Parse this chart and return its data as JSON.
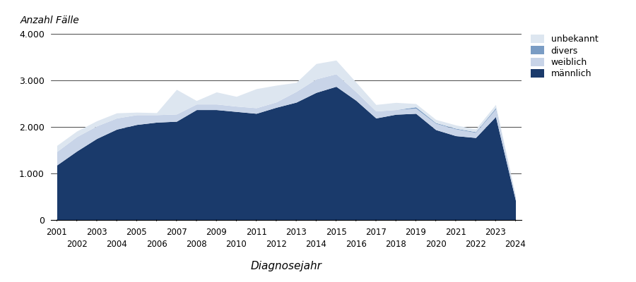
{
  "years": [
    2001,
    2002,
    2003,
    2004,
    2005,
    2006,
    2007,
    2008,
    2009,
    2010,
    2011,
    2012,
    2013,
    2014,
    2015,
    2016,
    2017,
    2018,
    2019,
    2020,
    2021,
    2022,
    2023,
    2024
  ],
  "maennlich": [
    1180,
    1480,
    1750,
    1950,
    2050,
    2100,
    2120,
    2370,
    2370,
    2330,
    2290,
    2420,
    2530,
    2740,
    2870,
    2570,
    2190,
    2270,
    2290,
    1940,
    1810,
    1770,
    2220,
    420
  ],
  "weiblich": [
    290,
    310,
    270,
    240,
    210,
    160,
    155,
    120,
    120,
    115,
    120,
    115,
    230,
    290,
    270,
    185,
    150,
    100,
    110,
    135,
    145,
    110,
    165,
    55
  ],
  "divers": [
    0,
    0,
    0,
    0,
    0,
    0,
    0,
    0,
    0,
    0,
    0,
    0,
    0,
    0,
    0,
    0,
    0,
    0,
    30,
    15,
    15,
    15,
    25,
    8
  ],
  "unbekannt": [
    130,
    120,
    110,
    110,
    55,
    45,
    530,
    75,
    260,
    210,
    410,
    360,
    195,
    330,
    295,
    205,
    140,
    155,
    70,
    70,
    70,
    60,
    70,
    40
  ],
  "color_maennlich": "#1a3a6b",
  "color_weiblich": "#c8d4e8",
  "color_divers": "#7a9cc4",
  "color_unbekannt": "#dde6f0",
  "title_ylabel": "Anzahl Fälle",
  "title_xlabel": "Diagnosejahr",
  "legend_labels": [
    "unbekannt",
    "divers",
    "weiblich",
    "männlich"
  ],
  "ylim": [
    0,
    4000
  ],
  "yticks": [
    0,
    1000,
    2000,
    3000,
    4000
  ],
  "ytick_labels": [
    "0",
    "1.000",
    "2.000",
    "3.000",
    "4.000"
  ],
  "odd_years": [
    2001,
    2003,
    2005,
    2007,
    2009,
    2011,
    2013,
    2015,
    2017,
    2019,
    2021,
    2023
  ],
  "even_years": [
    2002,
    2004,
    2006,
    2008,
    2010,
    2012,
    2014,
    2016,
    2018,
    2020,
    2022,
    2024
  ]
}
